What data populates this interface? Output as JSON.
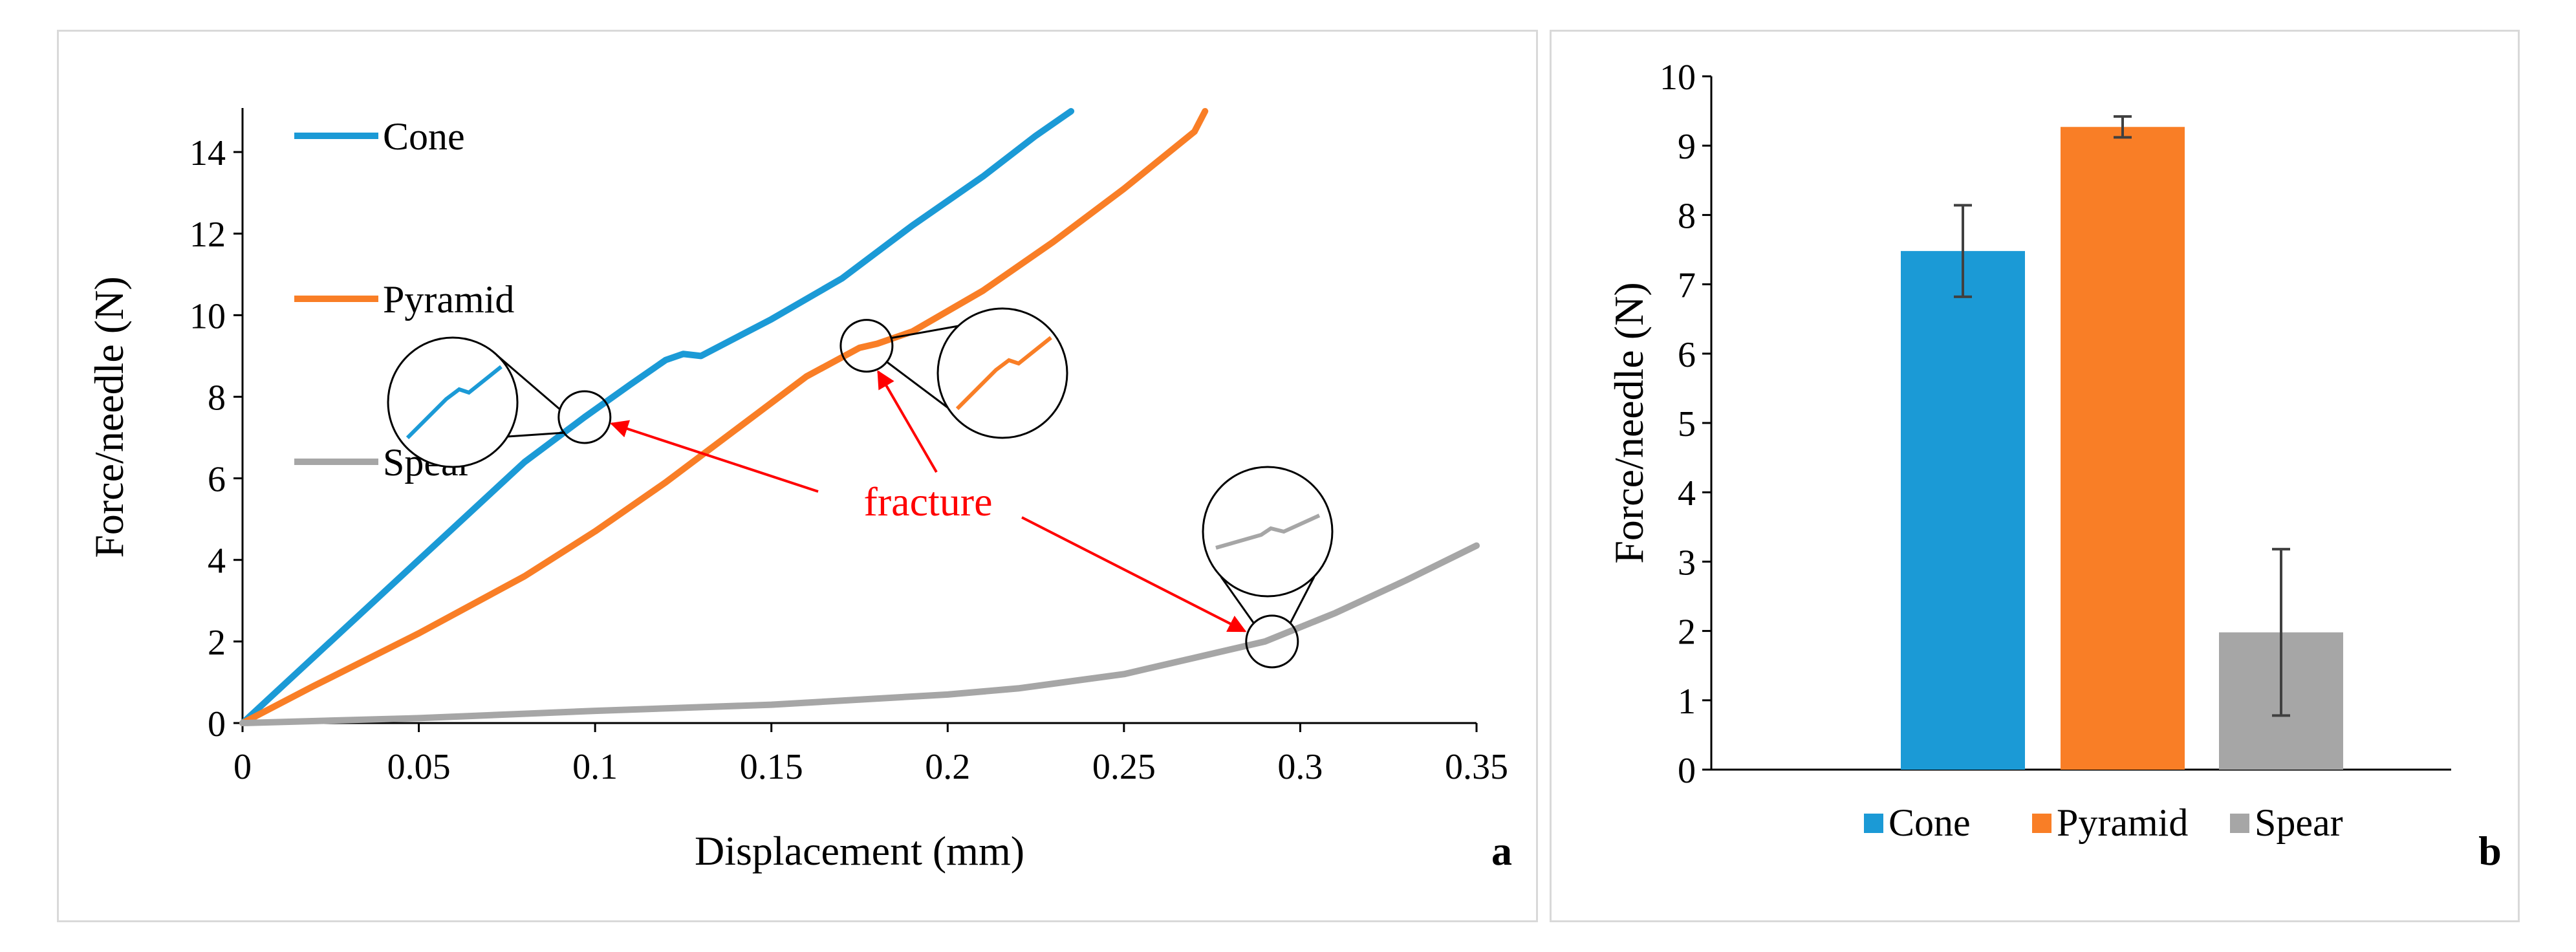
{
  "colors": {
    "cone": "#1b9ad6",
    "pyramid": "#f97e26",
    "spear": "#a6a6a6",
    "annotation": "#ff0000",
    "axis": "#000000",
    "panel_border": "#d9d9d9"
  },
  "chart_data": [
    {
      "panel_label": "a",
      "type": "line",
      "title": "",
      "xlabel": "Displacement (mm)",
      "ylabel": "Force/needle (N)",
      "xlim": [
        0,
        0.35
      ],
      "ylim": [
        0,
        15
      ],
      "xticks": [
        0,
        0.05,
        0.1,
        0.15,
        0.2,
        0.25,
        0.3,
        0.35
      ],
      "xtick_labels": [
        "0",
        "0.05",
        "0.1",
        "0.15",
        "0.2",
        "0.25",
        "0.3",
        "0.35"
      ],
      "yticks": [
        0,
        2,
        4,
        6,
        8,
        10,
        12,
        14
      ],
      "ytick_labels": [
        "0",
        "2",
        "4",
        "6",
        "8",
        "10",
        "12",
        "14"
      ],
      "grid": false,
      "legend_position": "top-left",
      "series": [
        {
          "name": "Cone",
          "color": "#1b9ad6",
          "x": [
            0,
            0.02,
            0.04,
            0.06,
            0.08,
            0.097,
            0.11,
            0.12,
            0.125,
            0.13,
            0.15,
            0.17,
            0.19,
            0.21,
            0.225,
            0.235
          ],
          "y": [
            0,
            1.6,
            3.2,
            4.8,
            6.4,
            7.5,
            8.3,
            8.9,
            9.05,
            9.0,
            9.9,
            10.9,
            12.2,
            13.4,
            14.4,
            15.0
          ]
        },
        {
          "name": "Pyramid",
          "color": "#f97e26",
          "x": [
            0,
            0.02,
            0.05,
            0.08,
            0.1,
            0.12,
            0.14,
            0.16,
            0.175,
            0.18,
            0.19,
            0.21,
            0.23,
            0.25,
            0.27,
            0.273
          ],
          "y": [
            0,
            0.9,
            2.2,
            3.6,
            4.7,
            5.9,
            7.2,
            8.5,
            9.2,
            9.3,
            9.6,
            10.6,
            11.8,
            13.1,
            14.5,
            15.0
          ]
        },
        {
          "name": "Spear",
          "color": "#a6a6a6",
          "x": [
            0,
            0.05,
            0.1,
            0.15,
            0.2,
            0.22,
            0.25,
            0.27,
            0.29,
            0.31,
            0.33,
            0.35
          ],
          "y": [
            0,
            0.12,
            0.3,
            0.45,
            0.7,
            0.85,
            1.2,
            1.6,
            2.0,
            2.7,
            3.5,
            4.35
          ]
        }
      ],
      "annotations": [
        {
          "text": "fracture",
          "targets": [
            {
              "series": "Cone",
              "x": 0.097,
              "y": 7.5
            },
            {
              "series": "Pyramid",
              "x": 0.177,
              "y": 9.25
            },
            {
              "series": "Spear",
              "x": 0.292,
              "y": 2.0
            }
          ]
        }
      ]
    },
    {
      "panel_label": "b",
      "type": "bar",
      "title": "",
      "xlabel": "",
      "ylabel": "Force/needle (N)",
      "ylim": [
        0,
        10
      ],
      "yticks": [
        0,
        1,
        2,
        3,
        4,
        5,
        6,
        7,
        8,
        9,
        10
      ],
      "ytick_labels": [
        "0",
        "1",
        "2",
        "3",
        "4",
        "5",
        "6",
        "7",
        "8",
        "9",
        "10"
      ],
      "grid": false,
      "legend_position": "bottom",
      "categories": [
        "Cone",
        "Pyramid",
        "Spear"
      ],
      "values": [
        7.48,
        9.27,
        1.98
      ],
      "errors": [
        0.66,
        0.15,
        1.2
      ],
      "colors": [
        "#1b9ad6",
        "#f97e26",
        "#a6a6a6"
      ]
    }
  ]
}
